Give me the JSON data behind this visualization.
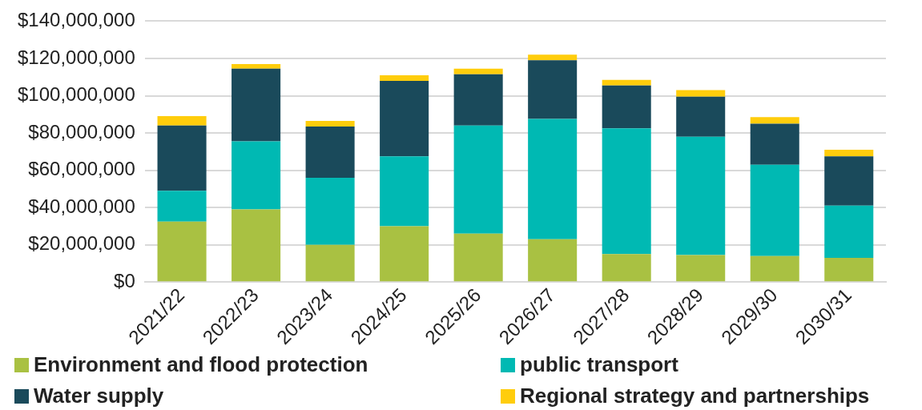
{
  "chart_data": {
    "type": "bar",
    "stacked": true,
    "categories": [
      "2021/22",
      "2022/23",
      "2023/24",
      "2024/25",
      "2025/26",
      "2026/27",
      "2027/28",
      "2028/29",
      "2029/30",
      "2030/31"
    ],
    "series": [
      {
        "name": "Environment and flood protection",
        "color": "#a9c142",
        "values": [
          32500000,
          39000000,
          20000000,
          30000000,
          26000000,
          23000000,
          15000000,
          14500000,
          14000000,
          13000000
        ]
      },
      {
        "name": "public transport",
        "color": "#00b9b3",
        "values": [
          16500000,
          36500000,
          36000000,
          37500000,
          58000000,
          64500000,
          67500000,
          63500000,
          49000000,
          28000000
        ]
      },
      {
        "name": "Water supply",
        "color": "#1a4a5b",
        "values": [
          35000000,
          39000000,
          27500000,
          40500000,
          27500000,
          31500000,
          23000000,
          21500000,
          22000000,
          26500000
        ]
      },
      {
        "name": "Regional strategy and partnerships",
        "color": "#ffcd0c",
        "values": [
          5000000,
          2500000,
          3000000,
          3000000,
          3000000,
          3000000,
          3000000,
          3500000,
          3500000,
          3500000
        ]
      }
    ],
    "ylim": [
      0,
      140000000
    ],
    "yticks": [
      {
        "value": 0,
        "label": "$0"
      },
      {
        "value": 20000000,
        "label": "$20,000,000"
      },
      {
        "value": 40000000,
        "label": "$40,000,000"
      },
      {
        "value": 60000000,
        "label": "$60,000,000"
      },
      {
        "value": 80000000,
        "label": "$80,000,000"
      },
      {
        "value": 100000000,
        "label": "$100,000,000"
      },
      {
        "value": 120000000,
        "label": "$120,000,000"
      },
      {
        "value": 140000000,
        "label": "$140,000,000"
      }
    ],
    "grid": "y",
    "legend": "bottom"
  }
}
